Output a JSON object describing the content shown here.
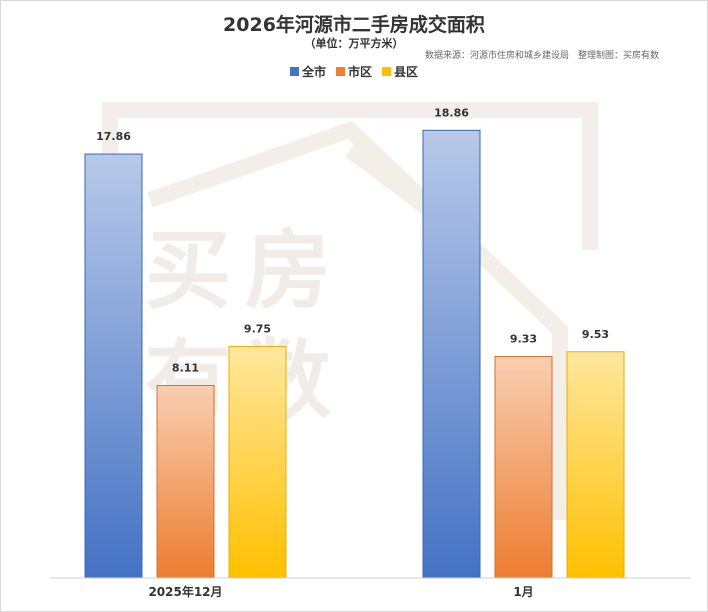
{
  "watermark": "买房有数",
  "chart_data": {
    "type": "bar",
    "title": "2026年河源市二手房成交面积",
    "subtitle": "（单位：万平方米）",
    "source": "数据来源：河源市住房和城乡建设局",
    "maker": "整理制图：买房有数",
    "categories": [
      "2025年12月",
      "1月"
    ],
    "series": [
      {
        "name": "全市",
        "values": [
          17.86,
          18.86
        ],
        "color": "#4472C4"
      },
      {
        "name": "市区",
        "values": [
          8.11,
          9.33
        ],
        "color": "#ED7D31"
      },
      {
        "name": "县区",
        "values": [
          9.75,
          9.53
        ],
        "color": "#FFC000"
      }
    ],
    "legend_position": "top-center",
    "grid": false,
    "xlabel": "",
    "ylabel": "",
    "ylim": [
      0,
      19.8
    ]
  }
}
